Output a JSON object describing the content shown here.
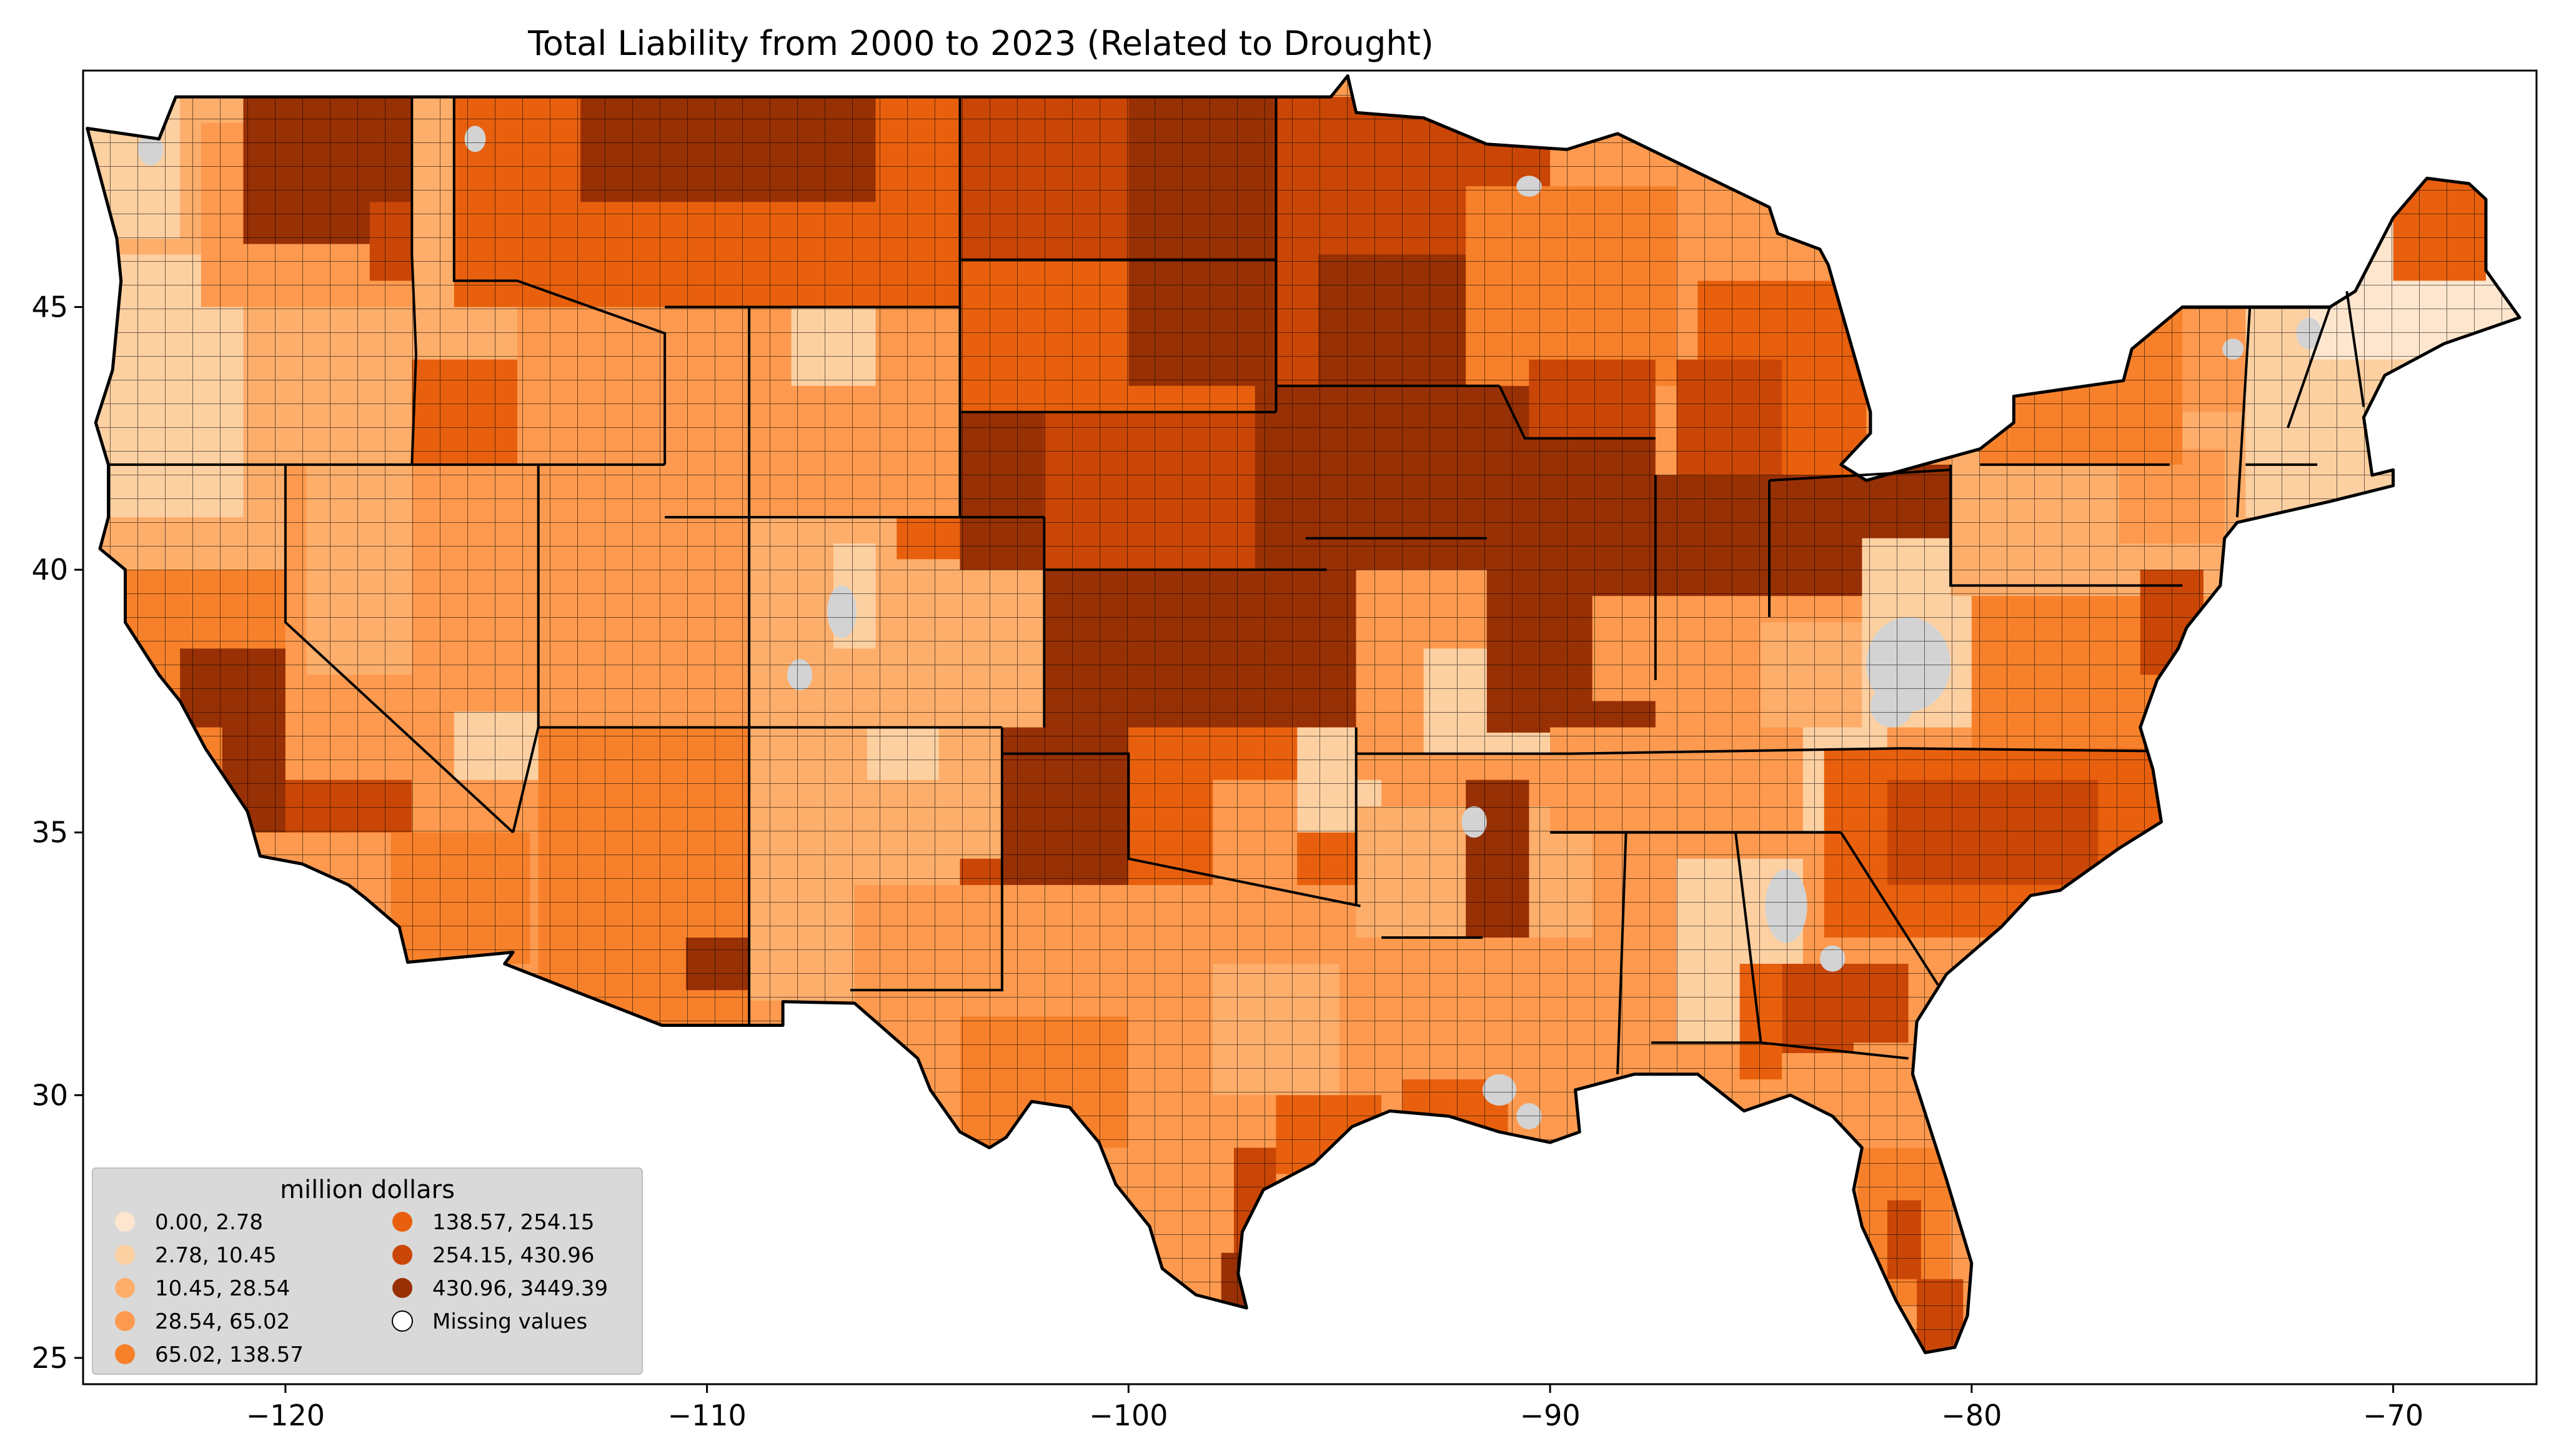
{
  "chart_data": {
    "type": "choropleth map",
    "title": "Total Liability from 2000 to 2023 (Related to Drought)",
    "x_ticks": [
      -120,
      -110,
      -100,
      -90,
      -80,
      -70
    ],
    "y_ticks": [
      25,
      30,
      35,
      40,
      45
    ],
    "x_tick_labels": [
      "−120",
      "−110",
      "−100",
      "−90",
      "−80",
      "−70"
    ],
    "y_tick_labels": [
      "25",
      "30",
      "35",
      "40",
      "45"
    ],
    "xlim": [
      -124.8,
      -66.6
    ],
    "ylim": [
      24.5,
      49.5
    ],
    "legend": {
      "title": "million dollars",
      "placement": "lower-left",
      "items": [
        {
          "label": "  0.00,    2.78",
          "color": "#fee6ce"
        },
        {
          "label": "  2.78,   10.45",
          "color": "#fdd0a2"
        },
        {
          "label": " 10.45,   28.54",
          "color": "#fdae6b"
        },
        {
          "label": " 28.54,   65.02",
          "color": "#fd9a4f"
        },
        {
          "label": " 65.02,  138.57",
          "color": "#f7812a"
        },
        {
          "label": "138.57,  254.15",
          "color": "#e8600d"
        },
        {
          "label": "254.15,  430.96",
          "color": "#c94606"
        },
        {
          "label": "430.96, 3449.39",
          "color": "#983005"
        },
        {
          "label": "Missing values",
          "color": "#ffffff"
        }
      ]
    },
    "missing_color": "#d3d3d3"
  }
}
